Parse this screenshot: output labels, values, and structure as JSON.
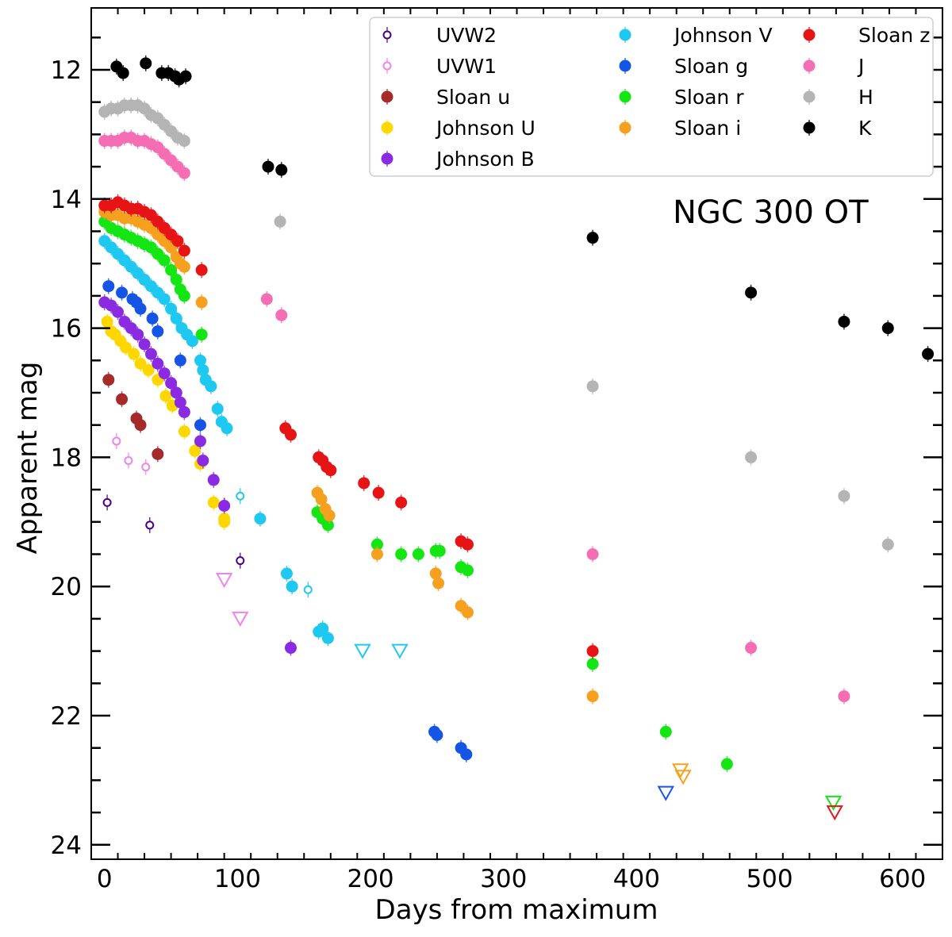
{
  "chart_data": {
    "type": "scatter",
    "title": "",
    "annotation": "NGC 300 OT",
    "xlabel": "Days from maximum",
    "ylabel": "Apparent mag",
    "xlim": [
      -10,
      630
    ],
    "ylim": [
      24.2,
      11.1
    ],
    "y_inverted": true,
    "xticks": [
      0,
      100,
      200,
      300,
      400,
      500,
      600
    ],
    "yticks": [
      12,
      14,
      16,
      18,
      20,
      22,
      24
    ],
    "grid": false,
    "legend_position": "top-right",
    "series": [
      {
        "name": "UVW2",
        "color": "#4b0082",
        "marker": "open-circle",
        "points": [
          [
            2,
            18.7
          ],
          [
            34,
            19.05
          ],
          [
            90,
            18.75
          ],
          [
            102,
            19.6
          ]
        ],
        "upper_limits": []
      },
      {
        "name": "UVW1",
        "color": "#ee82ee",
        "marker": "open-circle",
        "points": [
          [
            9,
            17.75
          ],
          [
            18,
            18.05
          ],
          [
            31,
            18.15
          ]
        ],
        "upper_limits": [
          [
            90,
            19.9
          ],
          [
            102,
            20.5
          ]
        ]
      },
      {
        "name": "Sloan u",
        "color": "#a52a2a",
        "marker": "filled-circle",
        "points": [
          [
            3,
            16.8
          ],
          [
            13,
            17.1
          ],
          [
            24,
            17.4
          ],
          [
            27,
            17.5
          ],
          [
            40,
            17.95
          ]
        ],
        "upper_limits": []
      },
      {
        "name": "Johnson U",
        "color": "#ffd700",
        "marker": "filled-circle",
        "points": [
          [
            2,
            15.9
          ],
          [
            5,
            16.05
          ],
          [
            8,
            16.1
          ],
          [
            12,
            16.2
          ],
          [
            16,
            16.3
          ],
          [
            22,
            16.4
          ],
          [
            27,
            16.55
          ],
          [
            33,
            16.65
          ],
          [
            40,
            16.8
          ],
          [
            46,
            17.05
          ],
          [
            51,
            17.2
          ],
          [
            60,
            17.6
          ],
          [
            68,
            17.9
          ],
          [
            72,
            18.1
          ],
          [
            82,
            18.7
          ],
          [
            90,
            18.95
          ],
          [
            90,
            19.0
          ]
        ],
        "upper_limits": []
      },
      {
        "name": "Johnson B",
        "color": "#8a2be2",
        "marker": "filled-circle",
        "points": [
          [
            0,
            15.6
          ],
          [
            5,
            15.65
          ],
          [
            10,
            15.75
          ],
          [
            15,
            15.9
          ],
          [
            20,
            16.0
          ],
          [
            25,
            16.1
          ],
          [
            30,
            16.25
          ],
          [
            35,
            16.4
          ],
          [
            40,
            16.55
          ],
          [
            45,
            16.7
          ],
          [
            50,
            16.85
          ],
          [
            54,
            17.0
          ],
          [
            57,
            17.15
          ],
          [
            60,
            17.3
          ],
          [
            72,
            17.75
          ],
          [
            74,
            18.05
          ],
          [
            82,
            18.35
          ],
          [
            90,
            18.75
          ],
          [
            140,
            20.95
          ]
        ],
        "upper_limits": []
      },
      {
        "name": "Johnson V",
        "color": "#1ec8f0",
        "marker": "filled-circle",
        "points": [
          [
            0,
            14.65
          ],
          [
            5,
            14.75
          ],
          [
            10,
            14.85
          ],
          [
            15,
            14.95
          ],
          [
            20,
            15.05
          ],
          [
            25,
            15.15
          ],
          [
            30,
            15.25
          ],
          [
            35,
            15.35
          ],
          [
            40,
            15.45
          ],
          [
            45,
            15.55
          ],
          [
            50,
            15.7
          ],
          [
            54,
            15.85
          ],
          [
            58,
            16.0
          ],
          [
            62,
            16.1
          ],
          [
            66,
            16.2
          ],
          [
            72,
            16.5
          ],
          [
            74,
            16.65
          ],
          [
            76,
            16.8
          ],
          [
            80,
            16.9
          ],
          [
            85,
            17.25
          ],
          [
            88,
            17.45
          ],
          [
            92,
            17.55
          ],
          [
            117,
            18.95
          ],
          [
            137,
            19.8
          ],
          [
            141,
            20.0
          ],
          [
            161,
            20.7
          ],
          [
            164,
            20.65
          ],
          [
            168,
            20.8
          ]
        ],
        "open_points": [
          [
            102,
            18.6
          ],
          [
            153,
            20.05
          ]
        ],
        "upper_limits": [
          [
            194,
            21.0
          ],
          [
            222,
            21.0
          ]
        ]
      },
      {
        "name": "Sloan g",
        "color": "#1455e6",
        "marker": "filled-circle",
        "points": [
          [
            3,
            15.35
          ],
          [
            13,
            15.45
          ],
          [
            21,
            15.55
          ],
          [
            24,
            15.6
          ],
          [
            27,
            15.7
          ],
          [
            36,
            15.85
          ],
          [
            40,
            16.05
          ],
          [
            57,
            16.5
          ],
          [
            72,
            17.5
          ],
          [
            248,
            22.25
          ],
          [
            250,
            22.3
          ],
          [
            268,
            22.5
          ],
          [
            272,
            22.6
          ]
        ],
        "upper_limits": [
          [
            422,
            23.2
          ]
        ]
      },
      {
        "name": "Sloan r",
        "color": "#14e614",
        "marker": "filled-circle",
        "points": [
          [
            0,
            14.35
          ],
          [
            5,
            14.45
          ],
          [
            10,
            14.5
          ],
          [
            15,
            14.55
          ],
          [
            20,
            14.6
          ],
          [
            25,
            14.65
          ],
          [
            30,
            14.7
          ],
          [
            35,
            14.75
          ],
          [
            40,
            14.85
          ],
          [
            45,
            14.95
          ],
          [
            50,
            15.1
          ],
          [
            54,
            15.25
          ],
          [
            57,
            15.4
          ],
          [
            60,
            15.5
          ],
          [
            73,
            16.1
          ],
          [
            160,
            18.85
          ],
          [
            164,
            18.95
          ],
          [
            168,
            19.05
          ],
          [
            205,
            19.35
          ],
          [
            223,
            19.5
          ],
          [
            236,
            19.5
          ],
          [
            249,
            19.45
          ],
          [
            252,
            19.45
          ],
          [
            268,
            19.7
          ],
          [
            273,
            19.75
          ],
          [
            367,
            21.2
          ],
          [
            422,
            22.25
          ],
          [
            468,
            22.75
          ]
        ],
        "upper_limits": [
          [
            548,
            23.35
          ]
        ]
      },
      {
        "name": "Sloan i",
        "color": "#f5a01e",
        "marker": "filled-circle",
        "points": [
          [
            0,
            14.2
          ],
          [
            5,
            14.25
          ],
          [
            10,
            14.25
          ],
          [
            15,
            14.3
          ],
          [
            20,
            14.3
          ],
          [
            25,
            14.35
          ],
          [
            30,
            14.4
          ],
          [
            35,
            14.45
          ],
          [
            40,
            14.55
          ],
          [
            45,
            14.65
          ],
          [
            50,
            14.75
          ],
          [
            54,
            14.9
          ],
          [
            57,
            15.0
          ],
          [
            60,
            15.05
          ],
          [
            73,
            15.6
          ],
          [
            160,
            18.55
          ],
          [
            163,
            18.65
          ],
          [
            166,
            18.8
          ],
          [
            169,
            18.9
          ],
          [
            205,
            19.5
          ],
          [
            249,
            19.8
          ],
          [
            251,
            19.95
          ],
          [
            268,
            20.3
          ],
          [
            273,
            20.4
          ],
          [
            367,
            21.7
          ]
        ],
        "upper_limits": [
          [
            433,
            22.85
          ],
          [
            435,
            22.95
          ]
        ]
      },
      {
        "name": "Sloan z",
        "color": "#e61414",
        "marker": "filled-circle",
        "points": [
          [
            0,
            14.1
          ],
          [
            5,
            14.1
          ],
          [
            10,
            14.05
          ],
          [
            15,
            14.1
          ],
          [
            20,
            14.15
          ],
          [
            25,
            14.15
          ],
          [
            30,
            14.2
          ],
          [
            35,
            14.25
          ],
          [
            40,
            14.35
          ],
          [
            45,
            14.45
          ],
          [
            50,
            14.55
          ],
          [
            55,
            14.65
          ],
          [
            60,
            14.8
          ],
          [
            73,
            15.1
          ],
          [
            136,
            17.55
          ],
          [
            140,
            17.65
          ],
          [
            161,
            18.0
          ],
          [
            164,
            18.05
          ],
          [
            167,
            18.15
          ],
          [
            170,
            18.2
          ],
          [
            195,
            18.4
          ],
          [
            206,
            18.55
          ],
          [
            223,
            18.7
          ],
          [
            268,
            19.3
          ],
          [
            273,
            19.35
          ],
          [
            367,
            21.0
          ]
        ],
        "upper_limits": [
          [
            549,
            23.5
          ]
        ]
      },
      {
        "name": "J",
        "color": "#f56eb4",
        "marker": "filled-circle",
        "points": [
          [
            0,
            13.1
          ],
          [
            5,
            13.1
          ],
          [
            10,
            13.1
          ],
          [
            15,
            13.05
          ],
          [
            20,
            13.05
          ],
          [
            25,
            13.1
          ],
          [
            30,
            13.1
          ],
          [
            35,
            13.15
          ],
          [
            40,
            13.2
          ],
          [
            45,
            13.3
          ],
          [
            50,
            13.4
          ],
          [
            55,
            13.5
          ],
          [
            60,
            13.6
          ],
          [
            122,
            15.55
          ],
          [
            133,
            15.8
          ],
          [
            367,
            19.5
          ],
          [
            486,
            20.95
          ],
          [
            556,
            21.7
          ]
        ],
        "upper_limits": []
      },
      {
        "name": "H",
        "color": "#b4b4b4",
        "marker": "filled-circle",
        "points": [
          [
            0,
            12.65
          ],
          [
            5,
            12.6
          ],
          [
            10,
            12.6
          ],
          [
            15,
            12.55
          ],
          [
            20,
            12.55
          ],
          [
            25,
            12.55
          ],
          [
            30,
            12.6
          ],
          [
            35,
            12.7
          ],
          [
            40,
            12.75
          ],
          [
            45,
            12.85
          ],
          [
            50,
            12.95
          ],
          [
            55,
            13.05
          ],
          [
            60,
            13.1
          ],
          [
            132,
            14.35
          ],
          [
            367,
            16.9
          ],
          [
            486,
            18.0
          ],
          [
            556,
            18.6
          ],
          [
            589,
            19.35
          ]
        ],
        "upper_limits": []
      },
      {
        "name": "K",
        "color": "#000000",
        "marker": "filled-circle",
        "points": [
          [
            9,
            11.95
          ],
          [
            14,
            12.05
          ],
          [
            31,
            11.9
          ],
          [
            43,
            12.05
          ],
          [
            48,
            12.05
          ],
          [
            53,
            12.1
          ],
          [
            56,
            12.15
          ],
          [
            61,
            12.1
          ],
          [
            123,
            13.5
          ],
          [
            133,
            13.55
          ],
          [
            367,
            14.6
          ],
          [
            486,
            15.45
          ],
          [
            556,
            15.9
          ],
          [
            589,
            16.0
          ],
          [
            619,
            16.4
          ]
        ],
        "upper_limits": []
      }
    ]
  }
}
